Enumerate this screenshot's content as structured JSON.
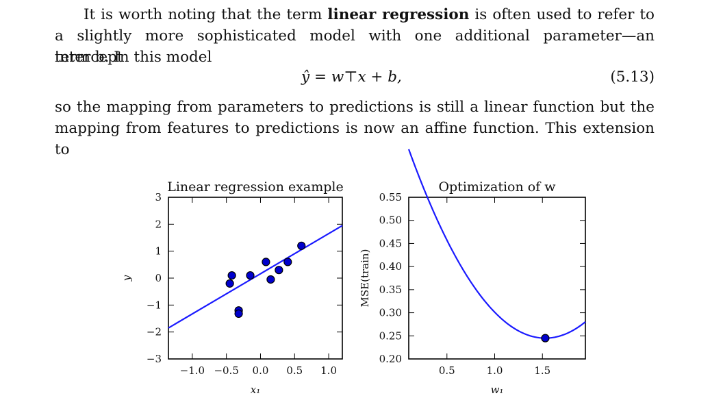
{
  "paragraph1": {
    "line1": "It is worth noting that the term",
    "bold_term": "linear regression",
    "line1_rest": "is often used to refer to",
    "line2": "a slightly more sophisticated model with one additional parameter—an intercept",
    "line3": "term b. In this model"
  },
  "equation": {
    "formula": "ŷ = w⊤x + b,",
    "number": "(5.13)"
  },
  "paragraph2": {
    "line1": "so the mapping from parameters to predictions is still a linear function but the",
    "line2": "mapping from features to predictions is now an affine function. This extension to"
  },
  "chart_data": [
    {
      "type": "scatter",
      "title": "Linear regression example",
      "xlabel": "x₁",
      "ylabel": "y",
      "xlim": [
        -1.35,
        1.2
      ],
      "ylim": [
        -3,
        3
      ],
      "xticks": [
        -1.0,
        -0.5,
        0.0,
        0.5,
        1.0
      ],
      "xtick_labels": [
        "−1.0",
        "−0.5",
        "0.0",
        "0.5",
        "1.0"
      ],
      "yticks": [
        3,
        2,
        1,
        0,
        -1,
        -2,
        -3
      ],
      "ytick_labels": [
        "3",
        "2",
        "1",
        "0",
        "−1",
        "−2",
        "−3"
      ],
      "points": [
        {
          "x": -0.45,
          "y": -0.2
        },
        {
          "x": -0.42,
          "y": 0.1
        },
        {
          "x": -0.32,
          "y": -1.2
        },
        {
          "x": -0.32,
          "y": -1.32
        },
        {
          "x": -0.15,
          "y": 0.1
        },
        {
          "x": 0.08,
          "y": 0.6
        },
        {
          "x": 0.15,
          "y": -0.05
        },
        {
          "x": 0.27,
          "y": 0.3
        },
        {
          "x": 0.4,
          "y": 0.6
        },
        {
          "x": 0.6,
          "y": 1.2
        }
      ],
      "fit_line": {
        "x": [
          -1.35,
          1.2
        ],
        "y": [
          -1.85,
          1.95
        ]
      },
      "point_color": "#0000cc",
      "line_color": "#1a1aff"
    },
    {
      "type": "line",
      "title": "Optimization of w",
      "xlabel": "w₁",
      "ylabel": "MSE(train)",
      "xlim": [
        0.1,
        1.95
      ],
      "ylim": [
        0.2,
        0.55
      ],
      "xticks": [
        0.5,
        1.0,
        1.5
      ],
      "xtick_labels": [
        "0.5",
        "1.0",
        "1.5"
      ],
      "yticks": [
        0.55,
        0.5,
        0.45,
        0.4,
        0.35,
        0.3,
        0.25,
        0.2
      ],
      "ytick_labels": [
        "0.55",
        "0.50",
        "0.45",
        "0.40",
        "0.35",
        "0.30",
        "0.25",
        "0.20"
      ],
      "curve": {
        "a": 0.2,
        "min_x": 1.53,
        "min_y": 0.245
      },
      "minimum_point": {
        "x": 1.53,
        "y": 0.245
      },
      "line_color": "#1a1aff",
      "point_color": "#0000cc"
    }
  ]
}
